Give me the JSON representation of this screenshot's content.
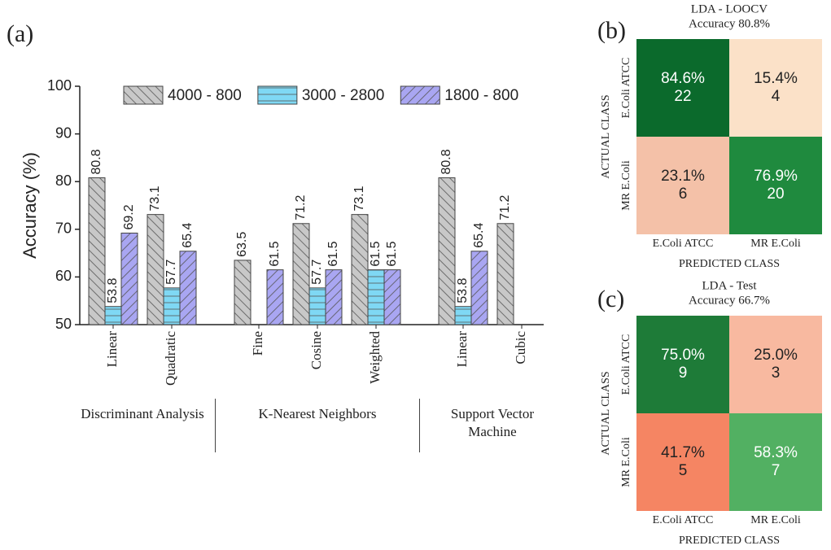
{
  "chart_data": [
    {
      "type": "bar",
      "panel": "(a)",
      "ylabel": "Accuracy (%)",
      "groups": [
        {
          "label": "Discriminant Analysis",
          "categories": [
            "Linear",
            "Quadratic"
          ]
        },
        {
          "label": "K-Nearest Neighbors",
          "categories": [
            "Fine",
            "Cosine",
            "Weighted"
          ]
        },
        {
          "label": "Support Vector Machine",
          "categories": [
            "Linear",
            "Cubic"
          ]
        }
      ],
      "series": [
        {
          "name": "4000 - 800",
          "color": "#c8c8c8",
          "values": [
            80.8,
            73.1,
            63.5,
            71.2,
            73.1,
            80.8,
            71.2
          ]
        },
        {
          "name": "3000 - 2800",
          "color": "#7fd8f4",
          "values": [
            53.8,
            57.7,
            null,
            57.7,
            61.5,
            53.8,
            null
          ]
        },
        {
          "name": "1800 - 800",
          "color": "#a9a6f2",
          "values": [
            69.2,
            65.4,
            61.5,
            61.5,
            61.5,
            65.4,
            null
          ]
        }
      ],
      "ylim": [
        50,
        100
      ],
      "yticks": [
        50,
        60,
        70,
        80,
        90,
        100
      ],
      "legend": "top"
    },
    {
      "type": "heatmap",
      "panel": "(b)",
      "title": "LDA - LOOCV",
      "subtitle": "Accuracy 80.8%",
      "xlabel": "PREDICTED CLASS",
      "ylabel": "ACTUAL CLASS",
      "x": [
        "E.Coli ATCC",
        "MR E.Coli"
      ],
      "y": [
        "E.Coli ATCC",
        "MR E.Coli"
      ],
      "values": [
        [
          84.6,
          15.4
        ],
        [
          23.1,
          76.9
        ]
      ],
      "value_labels": [
        [
          "84.6%",
          "15.4%"
        ],
        [
          "23.1%",
          "76.9%"
        ]
      ],
      "counts": [
        [
          22,
          4
        ],
        [
          6,
          20
        ]
      ],
      "colors": [
        [
          "#0b6a2c",
          "#fbe1c8"
        ],
        [
          "#f4c1a8",
          "#1f8a3e"
        ]
      ]
    },
    {
      "type": "heatmap",
      "panel": "(c)",
      "title": "LDA - Test",
      "subtitle": "Accuracy 66.7%",
      "xlabel": "PREDICTED CLASS",
      "ylabel": "ACTUAL CLASS",
      "x": [
        "E.Coli ATCC",
        "MR E.Coli"
      ],
      "y": [
        "E.Coli ATCC",
        "MR E.Coli"
      ],
      "values": [
        [
          75.0,
          25.0
        ],
        [
          41.7,
          58.3
        ]
      ],
      "value_labels": [
        [
          "75.0%",
          "25.0%"
        ],
        [
          "41.7%",
          "58.3%"
        ]
      ],
      "counts": [
        [
          9,
          3
        ],
        [
          5,
          7
        ]
      ],
      "colors": [
        [
          "#1e7b38",
          "#f8b9a0"
        ],
        [
          "#f58563",
          "#52b062"
        ]
      ]
    }
  ]
}
